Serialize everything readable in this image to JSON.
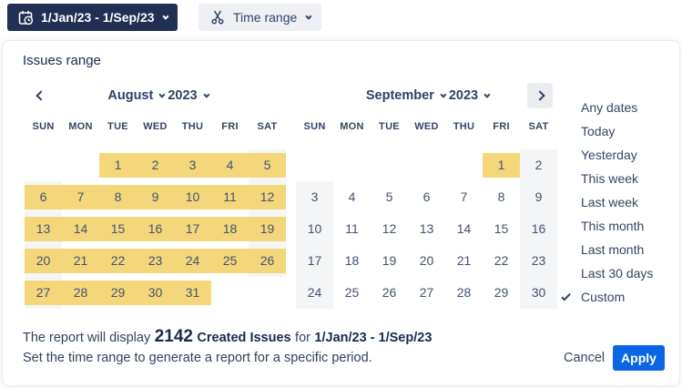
{
  "toolbar": {
    "date_range_button": {
      "label": "1/Jan/23 - 1/Sep/23"
    },
    "time_range_button": {
      "label": "Time range"
    }
  },
  "panel": {
    "title": "Issues range",
    "day_headers": [
      "SUN",
      "MON",
      "TUE",
      "WED",
      "THU",
      "FRI",
      "SAT"
    ],
    "calendars": [
      {
        "month": "August",
        "year": "2023",
        "weeks": [
          [
            "",
            "",
            "1",
            "2",
            "3",
            "4",
            "5"
          ],
          [
            "6",
            "7",
            "8",
            "9",
            "10",
            "11",
            "12"
          ],
          [
            "13",
            "14",
            "15",
            "16",
            "17",
            "18",
            "19"
          ],
          [
            "20",
            "21",
            "22",
            "23",
            "24",
            "25",
            "26"
          ],
          [
            "27",
            "28",
            "29",
            "30",
            "31",
            "",
            ""
          ]
        ],
        "highlighted": [
          "1",
          "2",
          "3",
          "4",
          "5",
          "6",
          "7",
          "8",
          "9",
          "10",
          "11",
          "12",
          "13",
          "14",
          "15",
          "16",
          "17",
          "18",
          "19",
          "20",
          "21",
          "22",
          "23",
          "24",
          "25",
          "26",
          "27",
          "28",
          "29",
          "30",
          "31"
        ]
      },
      {
        "month": "September",
        "year": "2023",
        "weeks": [
          [
            "",
            "",
            "",
            "",
            "",
            "1",
            "2"
          ],
          [
            "3",
            "4",
            "5",
            "6",
            "7",
            "8",
            "9"
          ],
          [
            "10",
            "11",
            "12",
            "13",
            "14",
            "15",
            "16"
          ],
          [
            "17",
            "18",
            "19",
            "20",
            "21",
            "22",
            "23"
          ],
          [
            "24",
            "25",
            "26",
            "27",
            "28",
            "29",
            "30"
          ]
        ],
        "highlighted": [
          "1"
        ]
      }
    ],
    "quick_options": [
      {
        "label": "Any dates",
        "selected": false
      },
      {
        "label": "Today",
        "selected": false
      },
      {
        "label": "Yesterday",
        "selected": false
      },
      {
        "label": "This week",
        "selected": false
      },
      {
        "label": "Last week",
        "selected": false
      },
      {
        "label": "This month",
        "selected": false
      },
      {
        "label": "Last month",
        "selected": false
      },
      {
        "label": "Last 30 days",
        "selected": false
      },
      {
        "label": "Custom",
        "selected": true
      }
    ],
    "summary": {
      "prefix": "The report will display",
      "count": "2142",
      "metric": "Created Issues",
      "connector": "for",
      "range": "1/Jan/23 - 1/Sep/23",
      "hint": "Set the time range to generate a report for a specific period."
    },
    "actions": {
      "cancel": "Cancel",
      "apply": "Apply"
    }
  },
  "icons": {
    "calendar_clock": "calendar-clock-icon",
    "scissors": "scissors-icon",
    "chevron_down": "chevron-down-icon",
    "chevron_left": "chevron-left-icon",
    "chevron_right": "chevron-right-icon",
    "check": "check-icon"
  },
  "colors": {
    "navy-dark": "#212F54",
    "text-dark": "#172B4D",
    "date-text": "#42526E",
    "highlight-yellow": "#F5D77B",
    "weekend-gray": "#F4F5F6",
    "control-gray": "#EBECF0",
    "control-light": "#EEF0F3",
    "apply-blue": "#0C66E4",
    "border-gray": "#E9EAEE"
  }
}
